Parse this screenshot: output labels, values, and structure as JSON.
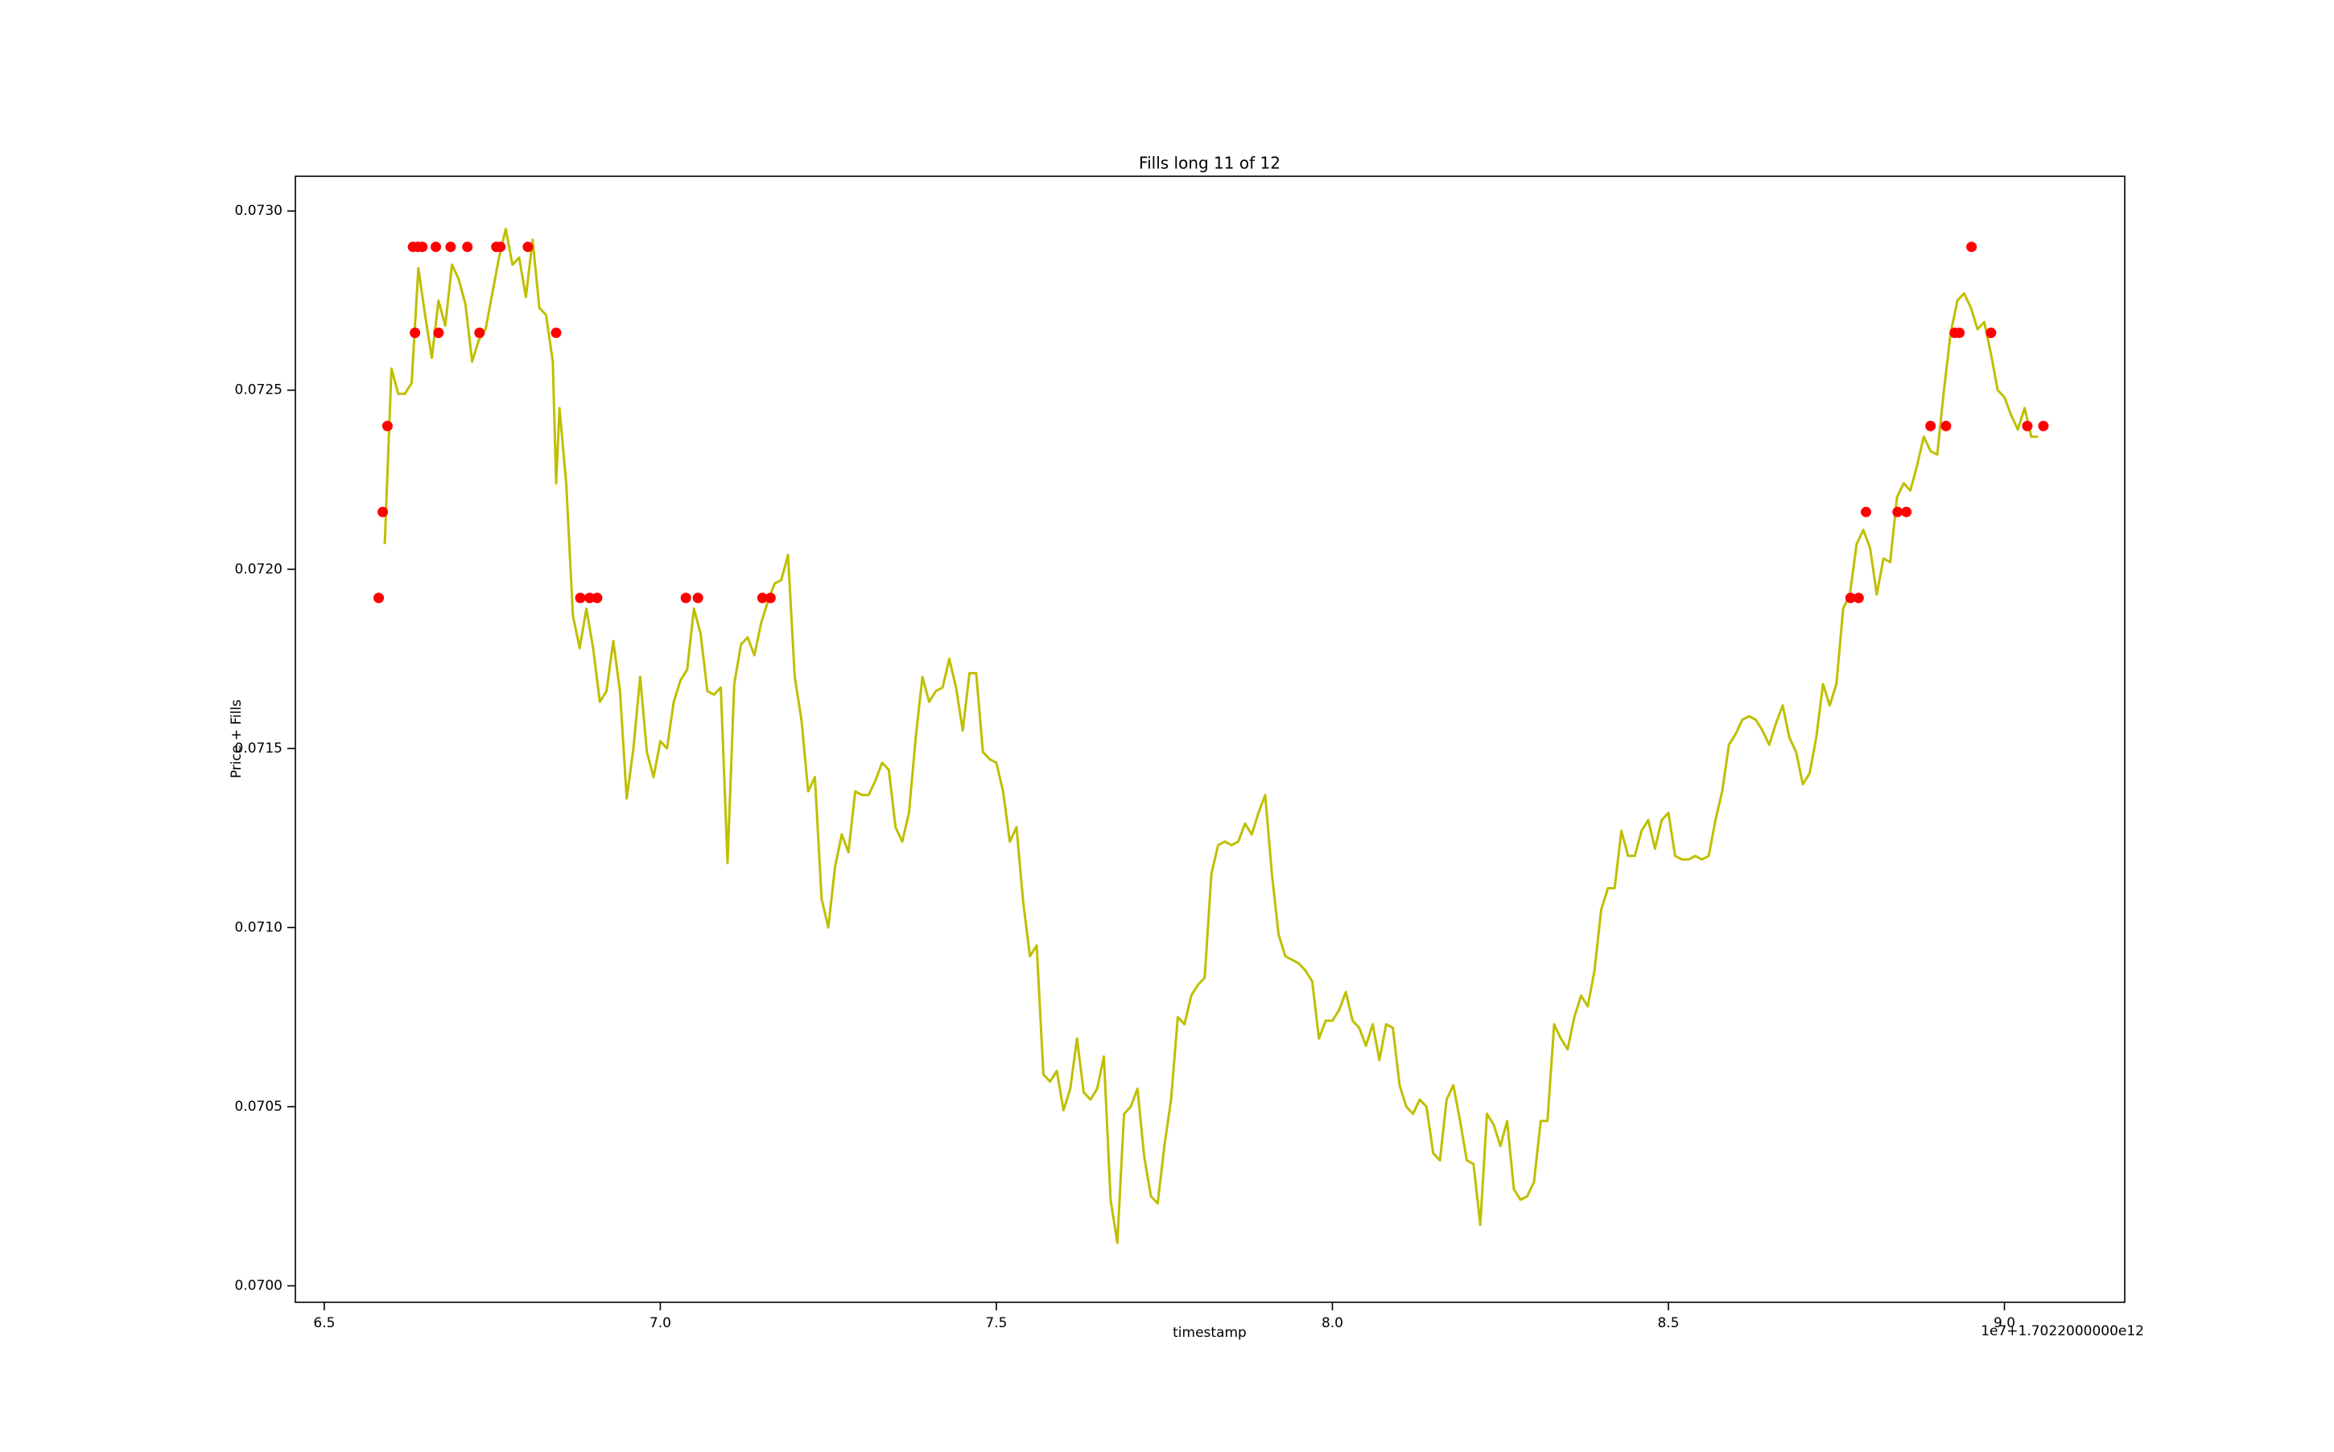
{
  "chart_data": {
    "type": "line",
    "title": "Fills long 11 of 12",
    "x_label": "timestamp",
    "y_label": "Price + Fills",
    "x_offset_label": "1e7+1.7022000000e12",
    "xlim": [
      6.457,
      9.179
    ],
    "ylim": [
      0.069954,
      0.073097
    ],
    "xticks": [
      6.5,
      {
        "value": 7.0,
        "label": "7.0"
      },
      7.5,
      {
        "value": 8.0,
        "label": "8.0"
      },
      8.5,
      {
        "value": 9.0,
        "label": "9.0"
      }
    ],
    "yticks": [
      {
        "value": 0.07,
        "label": "0.0700"
      },
      {
        "value": 0.0705,
        "label": "0.0705"
      },
      {
        "value": 0.071,
        "label": "0.0710"
      },
      {
        "value": 0.0715,
        "label": "0.0715"
      },
      {
        "value": 0.072,
        "label": "0.0720"
      },
      {
        "value": 0.0725,
        "label": "0.0725"
      },
      {
        "value": 0.073,
        "label": "0.0730"
      }
    ],
    "grid": false,
    "series": [
      {
        "type": "line",
        "color": "#bfbf00",
        "x": [
          6.59,
          6.6,
          6.61,
          6.62,
          6.63,
          6.64,
          6.65,
          6.66,
          6.67,
          6.68,
          6.69,
          6.7,
          6.71,
          6.72,
          6.73,
          6.74,
          6.75,
          6.76,
          6.77,
          6.78,
          6.79,
          6.8,
          6.81,
          6.82,
          6.83,
          6.84,
          6.845,
          6.85,
          6.86,
          6.87,
          6.88,
          6.89,
          6.9,
          6.91,
          6.92,
          6.93,
          6.94,
          6.95,
          6.96,
          6.97,
          6.98,
          6.99,
          7.0,
          7.01,
          7.02,
          7.03,
          7.04,
          7.05,
          7.06,
          7.07,
          7.08,
          7.09,
          7.1,
          7.11,
          7.12,
          7.13,
          7.14,
          7.15,
          7.16,
          7.17,
          7.18,
          7.19,
          7.2,
          7.21,
          7.22,
          7.23,
          7.24,
          7.25,
          7.26,
          7.27,
          7.28,
          7.29,
          7.3,
          7.31,
          7.32,
          7.33,
          7.34,
          7.35,
          7.36,
          7.37,
          7.38,
          7.39,
          7.4,
          7.41,
          7.42,
          7.43,
          7.44,
          7.45,
          7.46,
          7.47,
          7.48,
          7.49,
          7.5,
          7.51,
          7.52,
          7.53,
          7.54,
          7.55,
          7.56,
          7.57,
          7.58,
          7.59,
          7.6,
          7.61,
          7.62,
          7.63,
          7.64,
          7.65,
          7.66,
          7.67,
          7.68,
          7.69,
          7.7,
          7.71,
          7.72,
          7.73,
          7.74,
          7.75,
          7.76,
          7.77,
          7.78,
          7.79,
          7.8,
          7.81,
          7.82,
          7.83,
          7.84,
          7.85,
          7.86,
          7.87,
          7.88,
          7.89,
          7.9,
          7.91,
          7.92,
          7.93,
          7.94,
          7.95,
          7.96,
          7.97,
          7.98,
          7.99,
          8.0,
          8.01,
          8.02,
          8.03,
          8.04,
          8.05,
          8.06,
          8.07,
          8.08,
          8.09,
          8.1,
          8.11,
          8.12,
          8.13,
          8.14,
          8.15,
          8.16,
          8.17,
          8.18,
          8.19,
          8.2,
          8.21,
          8.22,
          8.23,
          8.24,
          8.25,
          8.26,
          8.27,
          8.28,
          8.29,
          8.3,
          8.31,
          8.32,
          8.33,
          8.34,
          8.35,
          8.36,
          8.37,
          8.38,
          8.39,
          8.4,
          8.41,
          8.42,
          8.43,
          8.44,
          8.45,
          8.46,
          8.47,
          8.48,
          8.49,
          8.5,
          8.51,
          8.52,
          8.53,
          8.54,
          8.55,
          8.56,
          8.57,
          8.58,
          8.59,
          8.6,
          8.61,
          8.62,
          8.63,
          8.64,
          8.65,
          8.66,
          8.67,
          8.68,
          8.69,
          8.7,
          8.71,
          8.72,
          8.73,
          8.74,
          8.75,
          8.76,
          8.77,
          8.78,
          8.79,
          8.8,
          8.81,
          8.82,
          8.83,
          8.84,
          8.85,
          8.86,
          8.87,
          8.88,
          8.89,
          8.9,
          8.91,
          8.92,
          8.93,
          8.94,
          8.95,
          8.96,
          8.97,
          8.98,
          8.99,
          9.0,
          9.01,
          9.02,
          9.03,
          9.04,
          9.05
        ],
        "values": [
          0.07207,
          0.07256,
          0.07249,
          0.07249,
          0.07252,
          0.07284,
          0.07271,
          0.07259,
          0.07275,
          0.07268,
          0.07285,
          0.07281,
          0.07274,
          0.07258,
          0.07264,
          0.07267,
          0.07277,
          0.07287,
          0.07295,
          0.07285,
          0.07287,
          0.07276,
          0.07292,
          0.07273,
          0.07271,
          0.07258,
          0.07224,
          0.07245,
          0.07224,
          0.07187,
          0.07178,
          0.07189,
          0.07178,
          0.07163,
          0.07166,
          0.0718,
          0.07166,
          0.07136,
          0.0715,
          0.0717,
          0.07149,
          0.07142,
          0.07152,
          0.0715,
          0.07163,
          0.07169,
          0.07172,
          0.07189,
          0.07182,
          0.07166,
          0.07165,
          0.07167,
          0.07118,
          0.07168,
          0.07179,
          0.07181,
          0.07176,
          0.07185,
          0.07191,
          0.07196,
          0.07197,
          0.07204,
          0.0717,
          0.07158,
          0.07138,
          0.07142,
          0.07108,
          0.071,
          0.07117,
          0.07126,
          0.07121,
          0.07138,
          0.07137,
          0.07137,
          0.07141,
          0.07146,
          0.07144,
          0.07128,
          0.07124,
          0.07132,
          0.07153,
          0.0717,
          0.07163,
          0.07166,
          0.07167,
          0.07175,
          0.07167,
          0.07155,
          0.07171,
          0.07171,
          0.07149,
          0.07147,
          0.07146,
          0.07138,
          0.07124,
          0.07128,
          0.07107,
          0.07092,
          0.07095,
          0.07059,
          0.07057,
          0.0706,
          0.07049,
          0.07055,
          0.07069,
          0.07054,
          0.07052,
          0.07055,
          0.07064,
          0.07024,
          0.07012,
          0.07048,
          0.0705,
          0.07055,
          0.07036,
          0.07025,
          0.07023,
          0.07039,
          0.07052,
          0.07075,
          0.07073,
          0.07081,
          0.07084,
          0.07086,
          0.07115,
          0.07123,
          0.07124,
          0.07123,
          0.07124,
          0.07129,
          0.07126,
          0.07132,
          0.07137,
          0.07115,
          0.07098,
          0.07092,
          0.07091,
          0.0709,
          0.07088,
          0.07085,
          0.07069,
          0.07074,
          0.07074,
          0.07077,
          0.07082,
          0.07074,
          0.07072,
          0.07067,
          0.07073,
          0.07063,
          0.07073,
          0.07072,
          0.07056,
          0.0705,
          0.07048,
          0.07052,
          0.0705,
          0.07037,
          0.07035,
          0.07052,
          0.07056,
          0.07046,
          0.07035,
          0.07034,
          0.07017,
          0.07048,
          0.07045,
          0.07039,
          0.07046,
          0.07027,
          0.07024,
          0.07025,
          0.07029,
          0.07046,
          0.07046,
          0.07073,
          0.07069,
          0.07066,
          0.07075,
          0.07081,
          0.07078,
          0.07088,
          0.07105,
          0.07111,
          0.07111,
          0.07127,
          0.0712,
          0.0712,
          0.07127,
          0.0713,
          0.07122,
          0.0713,
          0.07132,
          0.0712,
          0.07119,
          0.07119,
          0.0712,
          0.07119,
          0.0712,
          0.0713,
          0.07138,
          0.07151,
          0.07154,
          0.07158,
          0.07159,
          0.07158,
          0.07155,
          0.07151,
          0.07157,
          0.07162,
          0.07153,
          0.07149,
          0.0714,
          0.07143,
          0.07153,
          0.07168,
          0.07162,
          0.07168,
          0.07189,
          0.07193,
          0.07207,
          0.07211,
          0.07206,
          0.07193,
          0.07203,
          0.07202,
          0.0722,
          0.07224,
          0.07222,
          0.07229,
          0.07237,
          0.07233,
          0.07232,
          0.0725,
          0.07266,
          0.07275,
          0.07277,
          0.07273,
          0.07267,
          0.07269,
          0.0726,
          0.0725,
          0.07248,
          0.07243,
          0.07239,
          0.07245,
          0.07237,
          0.07237
        ]
      },
      {
        "type": "scatter",
        "color": "#ff0000",
        "x": [
          6.581,
          6.587,
          6.594,
          6.632,
          6.635,
          6.639,
          6.646,
          6.666,
          6.67,
          6.688,
          6.713,
          6.731,
          6.756,
          6.762,
          6.803,
          6.845,
          6.881,
          6.895,
          6.906,
          7.038,
          7.056,
          7.152,
          7.164,
          8.771,
          8.783,
          8.794,
          8.841,
          8.854,
          8.89,
          8.913,
          8.926,
          8.933,
          8.951,
          8.98,
          9.034,
          9.058
        ],
        "values": [
          0.07192,
          0.07216,
          0.0724,
          0.0729,
          0.07266,
          0.0729,
          0.0729,
          0.0729,
          0.07266,
          0.0729,
          0.0729,
          0.07266,
          0.0729,
          0.0729,
          0.0729,
          0.07266,
          0.07192,
          0.07192,
          0.07192,
          0.07192,
          0.07192,
          0.07192,
          0.07192,
          0.07192,
          0.07192,
          0.07216,
          0.07216,
          0.07216,
          0.0724,
          0.0724,
          0.07266,
          0.07266,
          0.0729,
          0.07266,
          0.0724,
          0.0724
        ]
      }
    ]
  }
}
